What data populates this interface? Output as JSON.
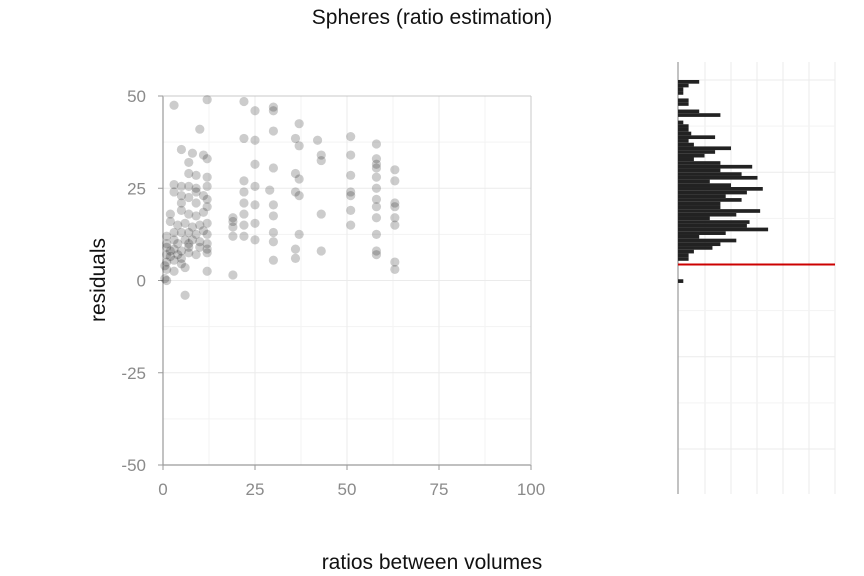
{
  "chart_data": {
    "type": "scatter",
    "title": "Spheres (ratio estimation)",
    "xlabel": "ratios between volumes",
    "ylabel": "residuals",
    "xlim": [
      0,
      100
    ],
    "ylim": [
      -50,
      50
    ],
    "x_ticks": [
      "0",
      "25",
      "50",
      "75",
      "100"
    ],
    "y_ticks": [
      "50",
      "25",
      "0",
      "-25",
      "-50"
    ],
    "grid": true,
    "legend": "none",
    "colors": {
      "point": "#000000",
      "bar": "#222222",
      "reference_line": "#cc0000",
      "grid": "#ebebeb",
      "axis": "#9a9a9a"
    },
    "series": [
      {
        "values": [
          {
            "x": 3,
            "y": 47.5
          },
          {
            "x": 12,
            "y": 49
          },
          {
            "x": 22,
            "y": 48.5
          },
          {
            "x": 25,
            "y": 46
          },
          {
            "x": 30,
            "y": 47
          },
          {
            "x": 30,
            "y": 46
          },
          {
            "x": 10,
            "y": 41
          },
          {
            "x": 30,
            "y": 40.5
          },
          {
            "x": 37,
            "y": 42.5
          },
          {
            "x": 22,
            "y": 38.5
          },
          {
            "x": 25,
            "y": 38
          },
          {
            "x": 36,
            "y": 38.5
          },
          {
            "x": 42,
            "y": 38
          },
          {
            "x": 51,
            "y": 39
          },
          {
            "x": 58,
            "y": 37
          },
          {
            "x": 37,
            "y": 36.5
          },
          {
            "x": 5,
            "y": 35.5
          },
          {
            "x": 8,
            "y": 34.5
          },
          {
            "x": 11,
            "y": 34
          },
          {
            "x": 12,
            "y": 33
          },
          {
            "x": 43,
            "y": 34
          },
          {
            "x": 43,
            "y": 32.5
          },
          {
            "x": 51,
            "y": 34
          },
          {
            "x": 58,
            "y": 33
          },
          {
            "x": 7,
            "y": 32
          },
          {
            "x": 58,
            "y": 31.5
          },
          {
            "x": 58,
            "y": 30.5
          },
          {
            "x": 63,
            "y": 30
          },
          {
            "x": 25,
            "y": 31.5
          },
          {
            "x": 30,
            "y": 30.5
          },
          {
            "x": 36,
            "y": 29
          },
          {
            "x": 37,
            "y": 27.5
          },
          {
            "x": 51,
            "y": 28.5
          },
          {
            "x": 58,
            "y": 28
          },
          {
            "x": 63,
            "y": 27
          },
          {
            "x": 7,
            "y": 29
          },
          {
            "x": 9,
            "y": 28.5
          },
          {
            "x": 12,
            "y": 28
          },
          {
            "x": 3,
            "y": 26
          },
          {
            "x": 5,
            "y": 25.5
          },
          {
            "x": 7,
            "y": 25.5
          },
          {
            "x": 9,
            "y": 25
          },
          {
            "x": 12,
            "y": 25.5
          },
          {
            "x": 22,
            "y": 27
          },
          {
            "x": 25,
            "y": 25.5
          },
          {
            "x": 22,
            "y": 24
          },
          {
            "x": 29,
            "y": 24.5
          },
          {
            "x": 36,
            "y": 24
          },
          {
            "x": 37,
            "y": 23
          },
          {
            "x": 51,
            "y": 24
          },
          {
            "x": 51,
            "y": 23
          },
          {
            "x": 58,
            "y": 25
          },
          {
            "x": 58,
            "y": 22
          },
          {
            "x": 63,
            "y": 21
          },
          {
            "x": 3,
            "y": 24
          },
          {
            "x": 5,
            "y": 23
          },
          {
            "x": 7,
            "y": 22.5
          },
          {
            "x": 9,
            "y": 24
          },
          {
            "x": 11,
            "y": 23
          },
          {
            "x": 12,
            "y": 22
          },
          {
            "x": 5,
            "y": 21
          },
          {
            "x": 9,
            "y": 21
          },
          {
            "x": 12,
            "y": 20
          },
          {
            "x": 22,
            "y": 21
          },
          {
            "x": 25,
            "y": 20.5
          },
          {
            "x": 30,
            "y": 20.5
          },
          {
            "x": 58,
            "y": 20
          },
          {
            "x": 63,
            "y": 20
          },
          {
            "x": 51,
            "y": 19
          },
          {
            "x": 2,
            "y": 18
          },
          {
            "x": 5,
            "y": 19
          },
          {
            "x": 7,
            "y": 18
          },
          {
            "x": 9,
            "y": 17.5
          },
          {
            "x": 11,
            "y": 18.5
          },
          {
            "x": 19,
            "y": 17
          },
          {
            "x": 19,
            "y": 16
          },
          {
            "x": 22,
            "y": 18
          },
          {
            "x": 30,
            "y": 17.5
          },
          {
            "x": 43,
            "y": 18
          },
          {
            "x": 58,
            "y": 17
          },
          {
            "x": 63,
            "y": 17
          },
          {
            "x": 2,
            "y": 16
          },
          {
            "x": 4,
            "y": 15
          },
          {
            "x": 6,
            "y": 15.5
          },
          {
            "x": 8,
            "y": 14.5
          },
          {
            "x": 10,
            "y": 15
          },
          {
            "x": 12,
            "y": 15.5
          },
          {
            "x": 19,
            "y": 14.5
          },
          {
            "x": 22,
            "y": 15
          },
          {
            "x": 25,
            "y": 15.5
          },
          {
            "x": 51,
            "y": 15
          },
          {
            "x": 63,
            "y": 15
          },
          {
            "x": 3,
            "y": 13
          },
          {
            "x": 5,
            "y": 13
          },
          {
            "x": 7,
            "y": 13
          },
          {
            "x": 9,
            "y": 12.5
          },
          {
            "x": 11,
            "y": 13.5
          },
          {
            "x": 12,
            "y": 12.5
          },
          {
            "x": 1,
            "y": 12
          },
          {
            "x": 19,
            "y": 12
          },
          {
            "x": 22,
            "y": 12
          },
          {
            "x": 25,
            "y": 11
          },
          {
            "x": 30,
            "y": 13
          },
          {
            "x": 37,
            "y": 12.5
          },
          {
            "x": 58,
            "y": 12.5
          },
          {
            "x": 1,
            "y": 10
          },
          {
            "x": 3,
            "y": 11
          },
          {
            "x": 4,
            "y": 10
          },
          {
            "x": 6,
            "y": 11
          },
          {
            "x": 7,
            "y": 10
          },
          {
            "x": 8,
            "y": 11
          },
          {
            "x": 10,
            "y": 10.5
          },
          {
            "x": 12,
            "y": 10
          },
          {
            "x": 30,
            "y": 10.5
          },
          {
            "x": 1,
            "y": 9
          },
          {
            "x": 2,
            "y": 8
          },
          {
            "x": 3,
            "y": 8.5
          },
          {
            "x": 5,
            "y": 8
          },
          {
            "x": 7,
            "y": 9
          },
          {
            "x": 10,
            "y": 9
          },
          {
            "x": 12,
            "y": 8.5
          },
          {
            "x": 36,
            "y": 8.5
          },
          {
            "x": 43,
            "y": 8
          },
          {
            "x": 58,
            "y": 8
          },
          {
            "x": 58,
            "y": 7
          },
          {
            "x": 1,
            "y": 7
          },
          {
            "x": 2,
            "y": 6.5
          },
          {
            "x": 4,
            "y": 7
          },
          {
            "x": 5,
            "y": 6
          },
          {
            "x": 7,
            "y": 7.5
          },
          {
            "x": 9,
            "y": 7
          },
          {
            "x": 12,
            "y": 7.5
          },
          {
            "x": 30,
            "y": 5.5
          },
          {
            "x": 36,
            "y": 6
          },
          {
            "x": 63,
            "y": 5
          },
          {
            "x": 1,
            "y": 5
          },
          {
            "x": 3,
            "y": 5.5
          },
          {
            "x": 5,
            "y": 4.5
          },
          {
            "x": 0.5,
            "y": 4
          },
          {
            "x": 6,
            "y": 3.5
          },
          {
            "x": 1,
            "y": 3
          },
          {
            "x": 3,
            "y": 2.5
          },
          {
            "x": 12,
            "y": 2.5
          },
          {
            "x": 19,
            "y": 1.5
          },
          {
            "x": 63,
            "y": 3
          },
          {
            "x": 0.5,
            "y": 0.5
          },
          {
            "x": 1,
            "y": 0
          },
          {
            "x": 6,
            "y": -4
          }
        ]
      }
    ],
    "marginal_histogram": {
      "orientation": "horizontal",
      "bin_width": 1,
      "bins": [
        {
          "y": 49,
          "count": 8
        },
        {
          "y": 48,
          "count": 4
        },
        {
          "y": 47,
          "count": 2
        },
        {
          "y": 46,
          "count": 2
        },
        {
          "y": 44,
          "count": 4
        },
        {
          "y": 43,
          "count": 4
        },
        {
          "y": 41,
          "count": 8
        },
        {
          "y": 40,
          "count": 16
        },
        {
          "y": 38,
          "count": 2
        },
        {
          "y": 37,
          "count": 4
        },
        {
          "y": 36,
          "count": 4
        },
        {
          "y": 35,
          "count": 5
        },
        {
          "y": 34,
          "count": 14
        },
        {
          "y": 33,
          "count": 4
        },
        {
          "y": 32,
          "count": 6
        },
        {
          "y": 31,
          "count": 20
        },
        {
          "y": 30,
          "count": 14
        },
        {
          "y": 29,
          "count": 10
        },
        {
          "y": 28,
          "count": 6
        },
        {
          "y": 27,
          "count": 16
        },
        {
          "y": 26,
          "count": 28
        },
        {
          "y": 25,
          "count": 16
        },
        {
          "y": 24,
          "count": 24
        },
        {
          "y": 23,
          "count": 30
        },
        {
          "y": 22,
          "count": 12
        },
        {
          "y": 21,
          "count": 20
        },
        {
          "y": 20,
          "count": 32
        },
        {
          "y": 19,
          "count": 26
        },
        {
          "y": 18,
          "count": 18
        },
        {
          "y": 17,
          "count": 24
        },
        {
          "y": 16,
          "count": 16
        },
        {
          "y": 15,
          "count": 16
        },
        {
          "y": 14,
          "count": 31
        },
        {
          "y": 13,
          "count": 22
        },
        {
          "y": 12,
          "count": 12
        },
        {
          "y": 11,
          "count": 27
        },
        {
          "y": 10,
          "count": 26
        },
        {
          "y": 9,
          "count": 34
        },
        {
          "y": 8,
          "count": 18
        },
        {
          "y": 7,
          "count": 8
        },
        {
          "y": 6,
          "count": 22
        },
        {
          "y": 5,
          "count": 16
        },
        {
          "y": 4,
          "count": 13
        },
        {
          "y": 3,
          "count": 6
        },
        {
          "y": 2,
          "count": 4
        },
        {
          "y": 1,
          "count": 4
        },
        {
          "y": -5,
          "count": 2
        }
      ],
      "reference_line_y": 0
    }
  }
}
